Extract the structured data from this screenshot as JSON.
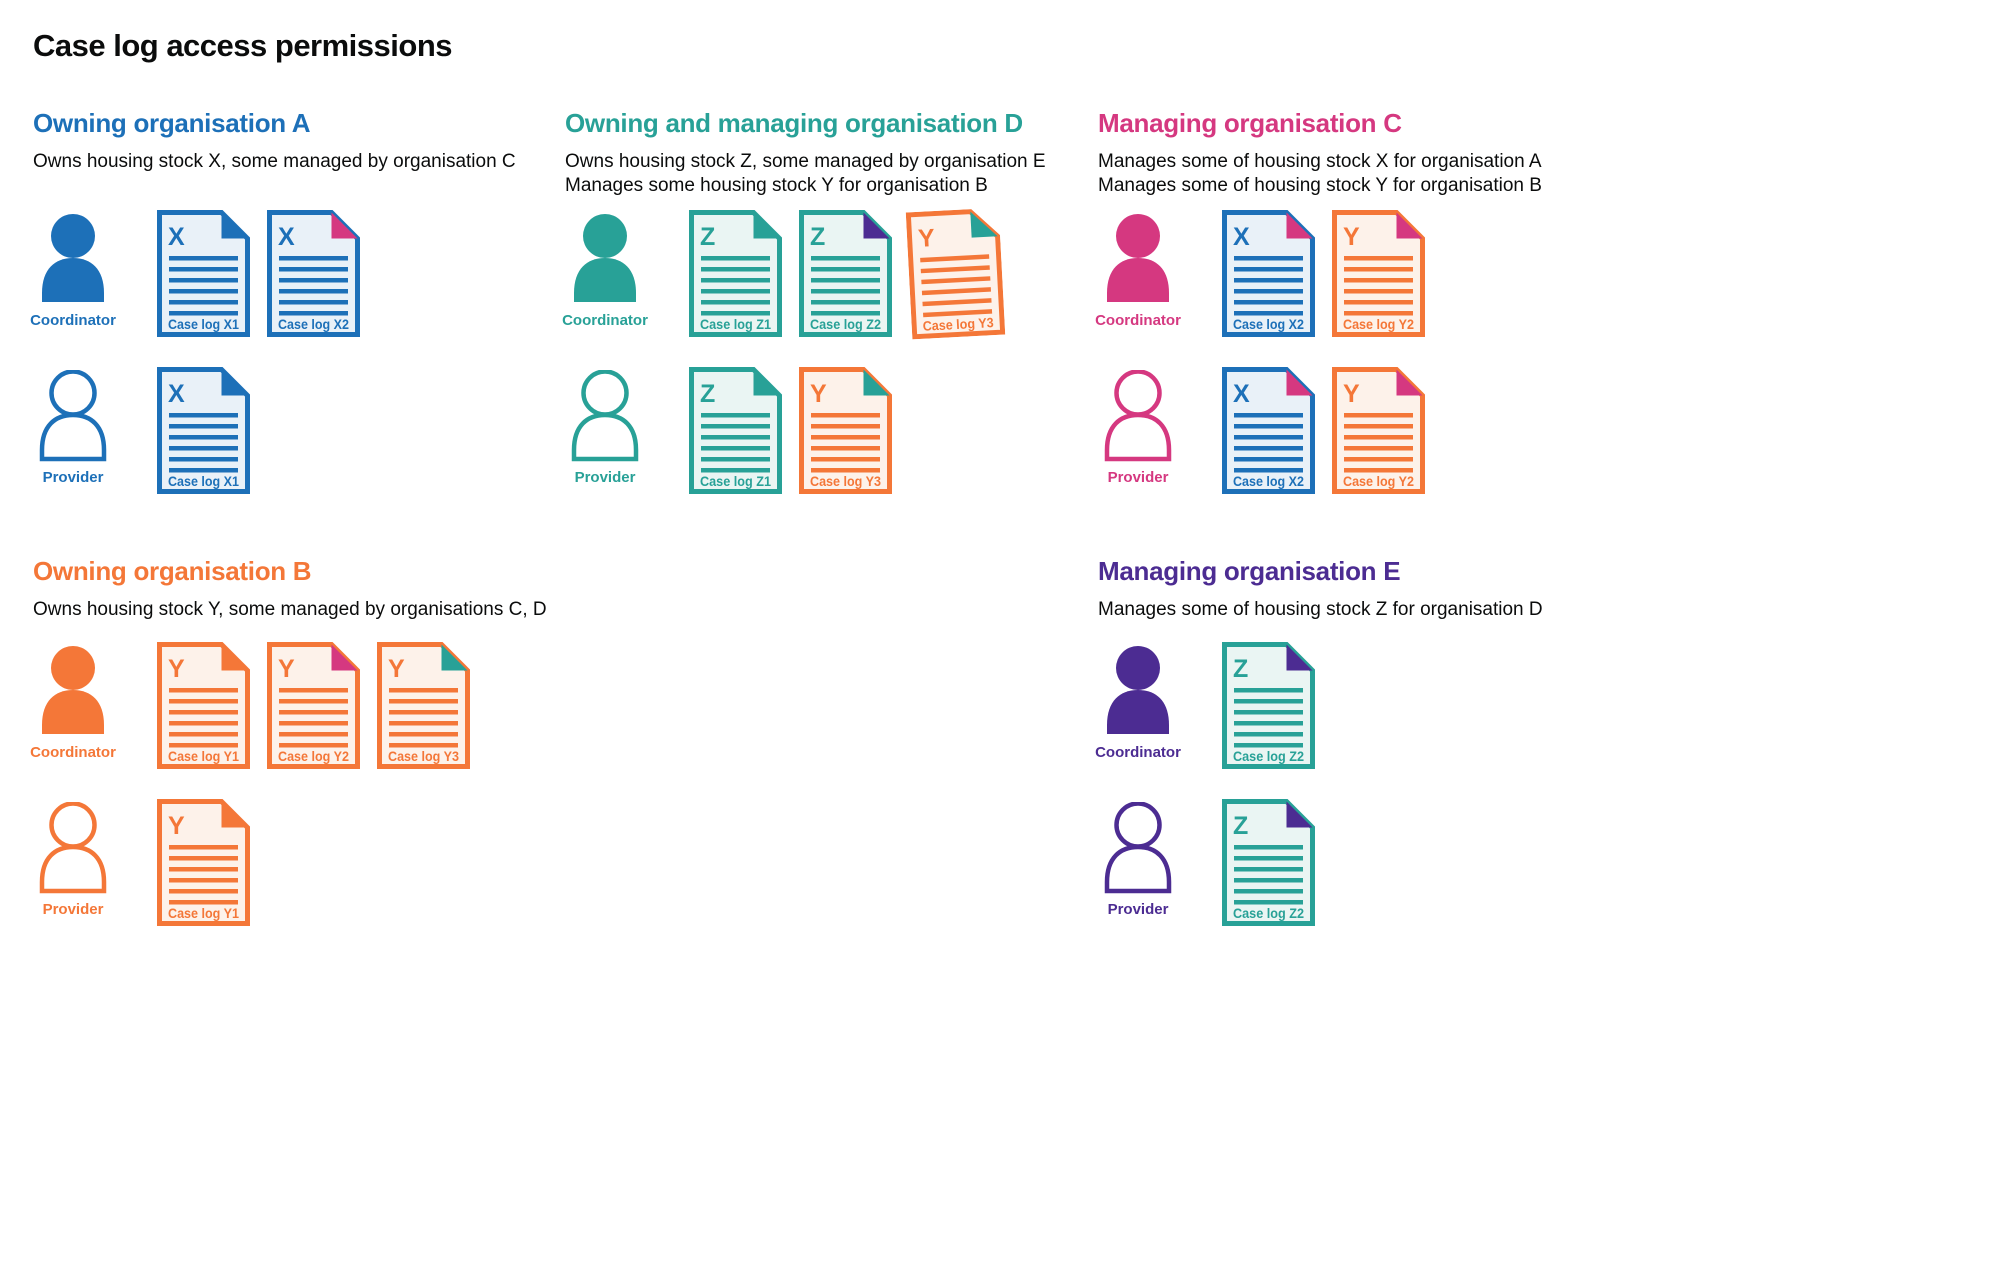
{
  "page_title": "Case log access permissions",
  "colors": {
    "blue": "#1d70b8",
    "teal": "#28a197",
    "pink": "#d53880",
    "orange": "#f47738",
    "purple": "#4c2c92",
    "text": "#0b0c0c",
    "white": "#ffffff",
    "tint_blue": "#e9f1f8",
    "tint_teal": "#eaf5f3",
    "tint_orange": "#fdf2ea"
  },
  "sections": [
    {
      "id": "owning-organisation-a",
      "title": "Owning organisation A",
      "color_key": "blue",
      "description_lines": [
        "Owns housing stock X, some managed by organisation C"
      ],
      "rows": [
        {
          "role": "Coordinator",
          "person_style": "filled",
          "docs": [
            {
              "letter": "X",
              "label": "Case log X1",
              "doc_color": "blue",
              "fold_color": "blue"
            },
            {
              "letter": "X",
              "label": "Case log X2",
              "doc_color": "blue",
              "fold_color": "pink"
            }
          ]
        },
        {
          "role": "Provider",
          "person_style": "outline",
          "docs": [
            {
              "letter": "X",
              "label": "Case log X1",
              "doc_color": "blue",
              "fold_color": "blue"
            }
          ]
        }
      ]
    },
    {
      "id": "owning-and-managing-organisation-d",
      "title": "Owning and managing organisation D",
      "color_key": "teal",
      "description_lines": [
        "Owns housing stock Z, some managed by organisation E",
        "Manages some housing stock Y for organisation B"
      ],
      "rows": [
        {
          "role": "Coordinator",
          "person_style": "filled",
          "docs": [
            {
              "letter": "Z",
              "label": "Case log Z1",
              "doc_color": "teal",
              "fold_color": "teal"
            },
            {
              "letter": "Z",
              "label": "Case log Z2",
              "doc_color": "teal",
              "fold_color": "purple"
            },
            {
              "letter": "Y",
              "label": "Case log Y3",
              "doc_color": "orange",
              "fold_color": "teal",
              "rotated": true
            }
          ]
        },
        {
          "role": "Provider",
          "person_style": "outline",
          "docs": [
            {
              "letter": "Z",
              "label": "Case log Z1",
              "doc_color": "teal",
              "fold_color": "teal"
            },
            {
              "letter": "Y",
              "label": "Case log Y3",
              "doc_color": "orange",
              "fold_color": "teal"
            }
          ]
        }
      ]
    },
    {
      "id": "managing-organisation-c",
      "title": "Managing organisation C",
      "color_key": "pink",
      "description_lines": [
        "Manages some of housing stock X for organisation A",
        "Manages some of housing stock Y for organisation B"
      ],
      "rows": [
        {
          "role": "Coordinator",
          "person_style": "filled",
          "docs": [
            {
              "letter": "X",
              "label": "Case log X2",
              "doc_color": "blue",
              "fold_color": "pink"
            },
            {
              "letter": "Y",
              "label": "Case log Y2",
              "doc_color": "orange",
              "fold_color": "pink"
            }
          ]
        },
        {
          "role": "Provider",
          "person_style": "outline",
          "docs": [
            {
              "letter": "X",
              "label": "Case log X2",
              "doc_color": "blue",
              "fold_color": "pink"
            },
            {
              "letter": "Y",
              "label": "Case log Y2",
              "doc_color": "orange",
              "fold_color": "pink"
            }
          ]
        }
      ]
    },
    {
      "id": "owning-organisation-b",
      "title": "Owning organisation B",
      "color_key": "orange",
      "description_lines": [
        "Owns housing stock Y, some managed by organisations C, D"
      ],
      "rows": [
        {
          "role": "Coordinator",
          "person_style": "filled",
          "docs": [
            {
              "letter": "Y",
              "label": "Case log Y1",
              "doc_color": "orange",
              "fold_color": "orange"
            },
            {
              "letter": "Y",
              "label": "Case log Y2",
              "doc_color": "orange",
              "fold_color": "pink"
            },
            {
              "letter": "Y",
              "label": "Case log Y3",
              "doc_color": "orange",
              "fold_color": "teal"
            }
          ]
        },
        {
          "role": "Provider",
          "person_style": "outline",
          "docs": [
            {
              "letter": "Y",
              "label": "Case log Y1",
              "doc_color": "orange",
              "fold_color": "orange"
            }
          ]
        }
      ]
    },
    {
      "id": "managing-organisation-e",
      "title": "Managing organisation E",
      "color_key": "purple",
      "description_lines": [
        "Manages some of housing stock Z for organisation D"
      ],
      "rows": [
        {
          "role": "Coordinator",
          "person_style": "filled",
          "docs": [
            {
              "letter": "Z",
              "label": "Case log Z2",
              "doc_color": "teal",
              "fold_color": "purple"
            }
          ]
        },
        {
          "role": "Provider",
          "person_style": "outline",
          "docs": [
            {
              "letter": "Z",
              "label": "Case log Z2",
              "doc_color": "teal",
              "fold_color": "purple"
            }
          ]
        }
      ]
    }
  ]
}
